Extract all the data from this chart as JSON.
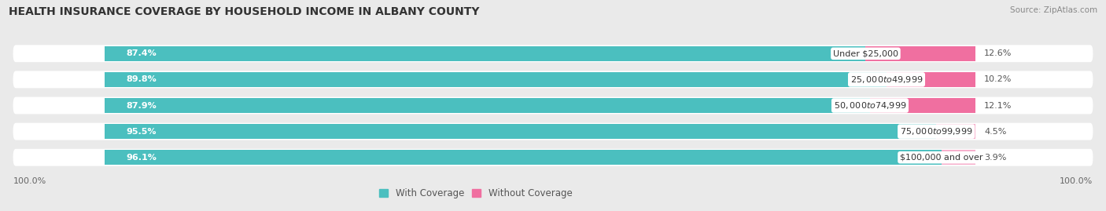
{
  "title": "HEALTH INSURANCE COVERAGE BY HOUSEHOLD INCOME IN ALBANY COUNTY",
  "source": "Source: ZipAtlas.com",
  "categories": [
    "Under $25,000",
    "$25,000 to $49,999",
    "$50,000 to $74,999",
    "$75,000 to $99,999",
    "$100,000 and over"
  ],
  "with_coverage": [
    87.4,
    89.8,
    87.9,
    95.5,
    96.1
  ],
  "without_coverage": [
    12.6,
    10.2,
    12.1,
    4.5,
    3.9
  ],
  "color_with": "#4BBFBF",
  "color_without_saturated": "#F06FA0",
  "color_without_light": "#F7AECB",
  "bar_height": 0.58,
  "background_color": "#eaeaea",
  "bar_bg_color": "#ffffff",
  "title_fontsize": 10,
  "label_fontsize": 8,
  "cat_fontsize": 8,
  "tick_fontsize": 8,
  "source_fontsize": 7.5,
  "without_saturated_rows": [
    0,
    1,
    2
  ],
  "without_light_rows": [
    3,
    4
  ]
}
